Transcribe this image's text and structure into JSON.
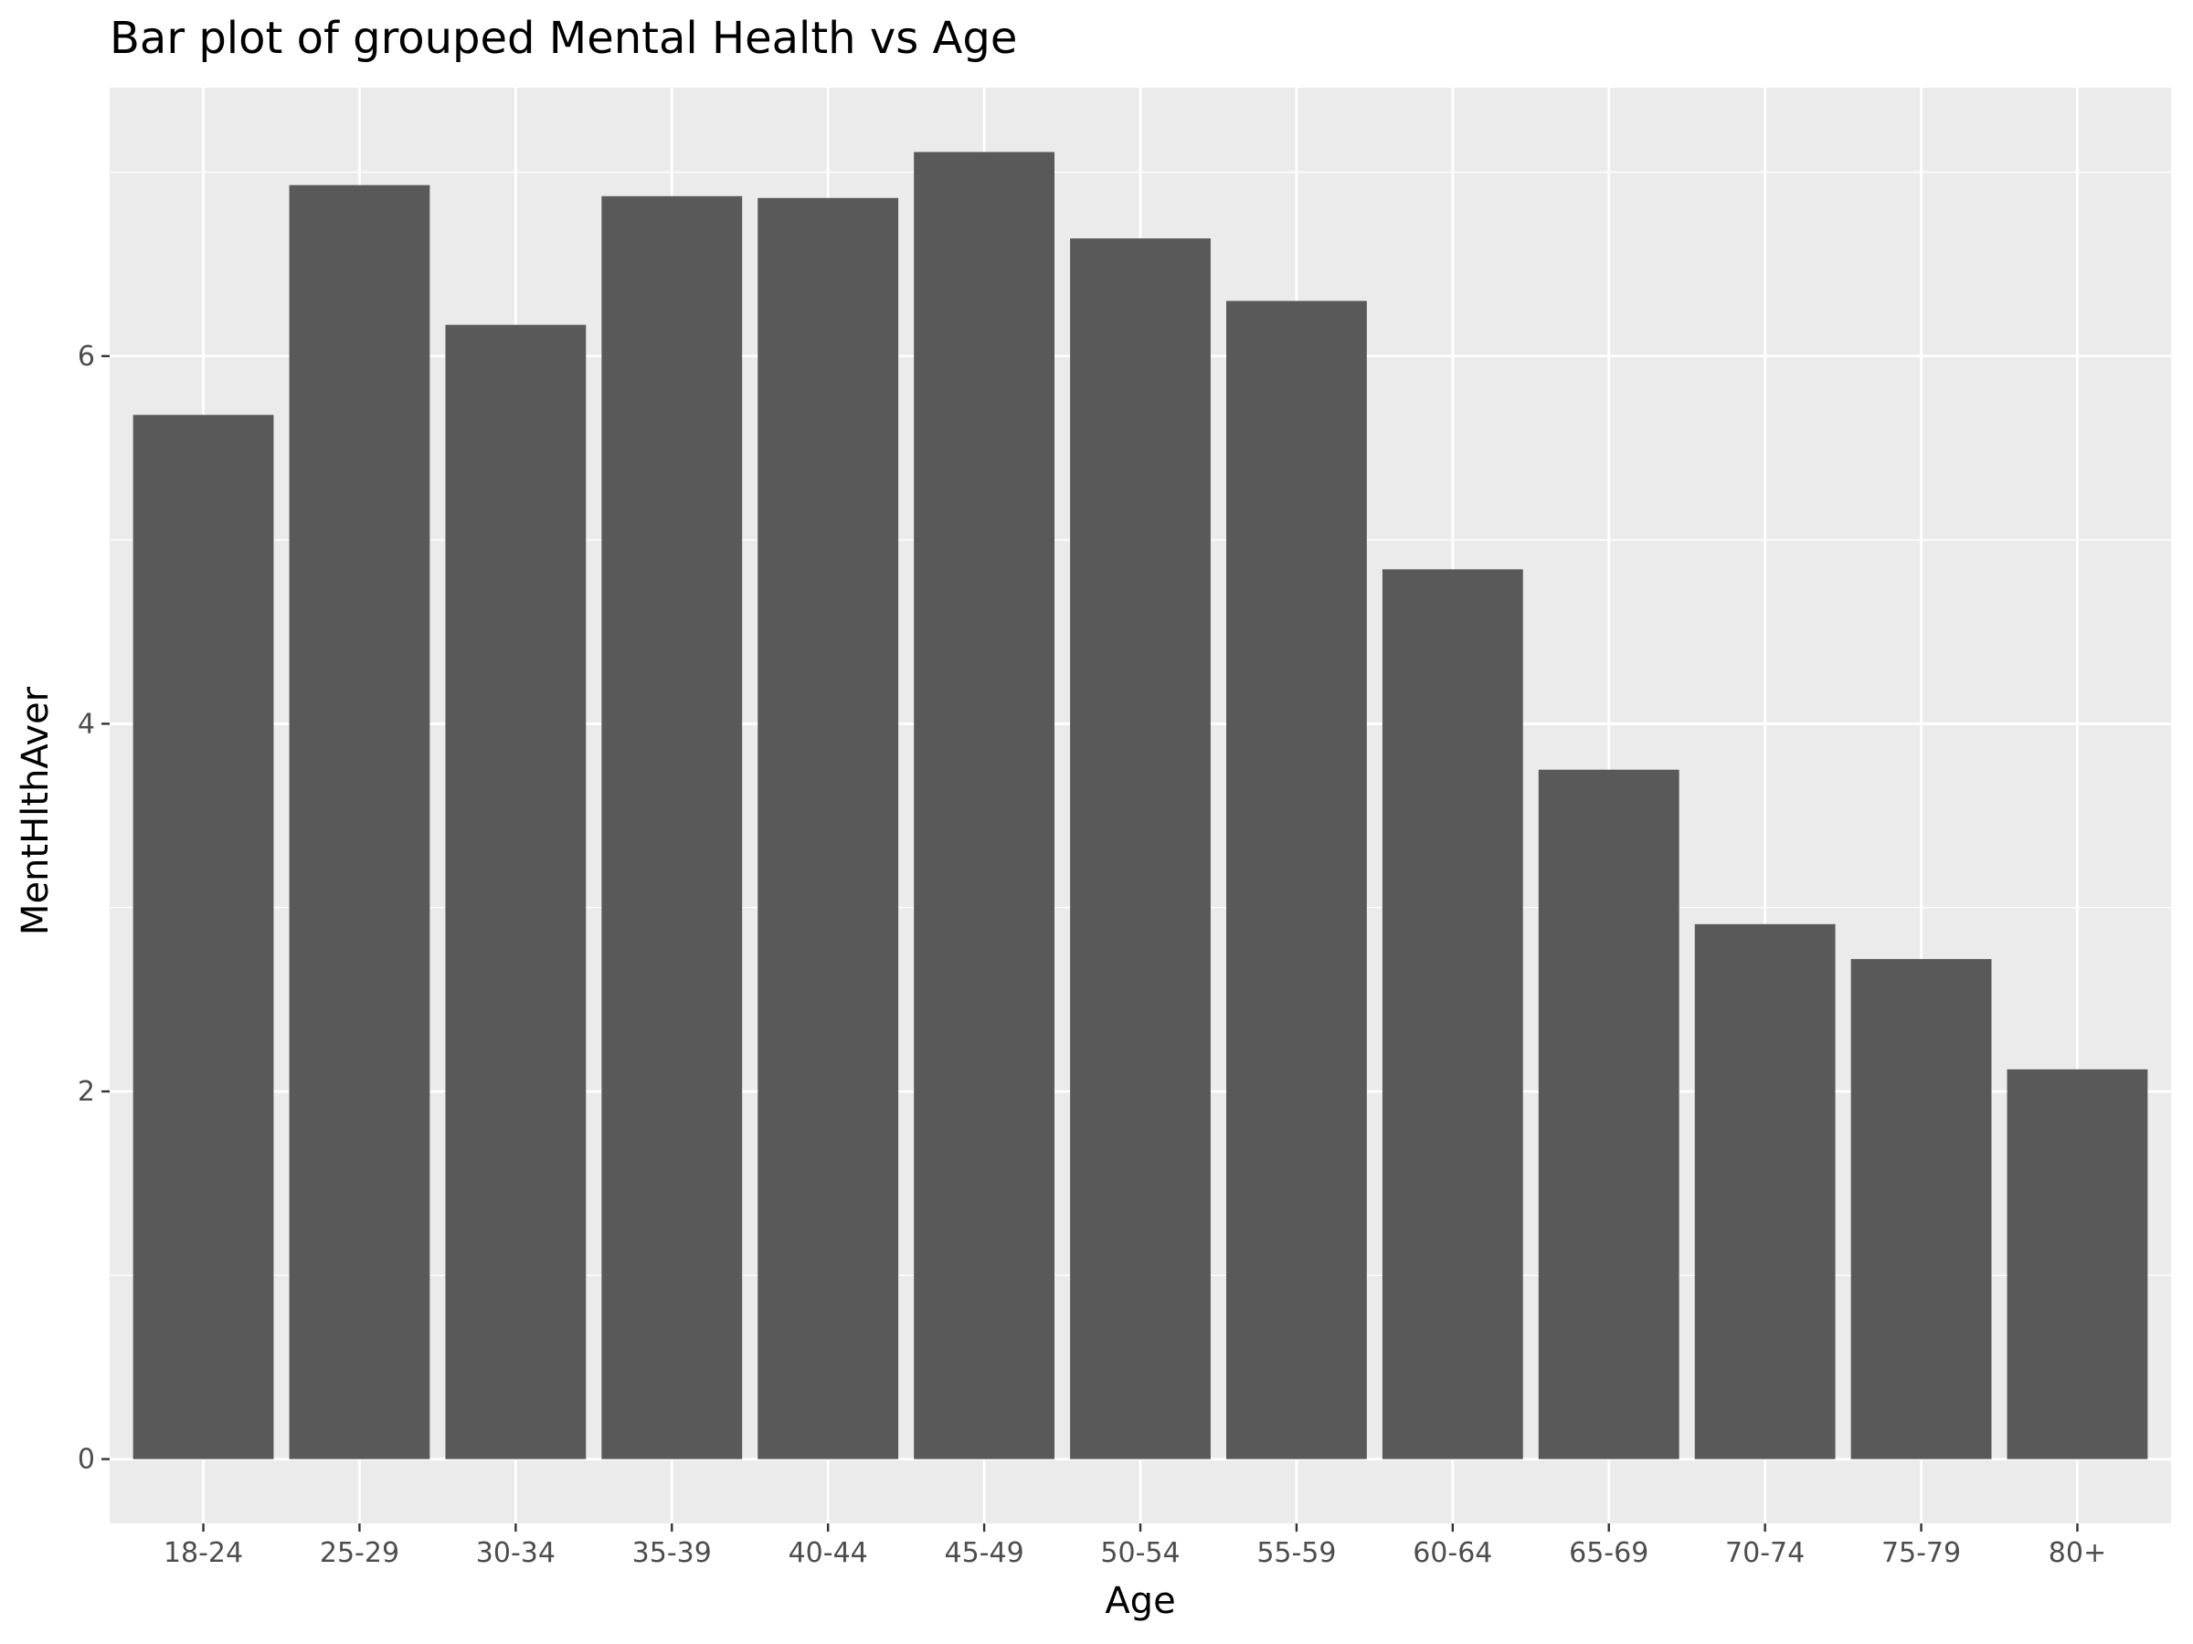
{
  "chart_data": {
    "type": "bar",
    "title": "Bar plot of grouped Mental Health vs Age",
    "xlabel": "Age",
    "ylabel": "MentHlthAver",
    "categories": [
      "18-24",
      "25-29",
      "30-34",
      "35-39",
      "40-44",
      "45-49",
      "50-54",
      "55-59",
      "60-64",
      "65-69",
      "70-74",
      "75-79",
      "80+"
    ],
    "values": [
      5.68,
      6.93,
      6.17,
      6.87,
      6.86,
      7.11,
      6.64,
      6.3,
      4.84,
      3.75,
      2.91,
      2.72,
      2.12
    ],
    "ylim": [
      -0.35,
      7.46
    ],
    "yticks": [
      0,
      2,
      4,
      6
    ],
    "ytick_labels": [
      "0",
      "2",
      "4",
      "6"
    ],
    "grid": true,
    "legend": "none",
    "colors": {
      "panel_background": "#ebebeb",
      "grid_line": "#ffffff",
      "bar_fill": "#595959",
      "tick_label": "#4d4d4d",
      "tick_mark": "#333333",
      "text": "#000000"
    }
  }
}
